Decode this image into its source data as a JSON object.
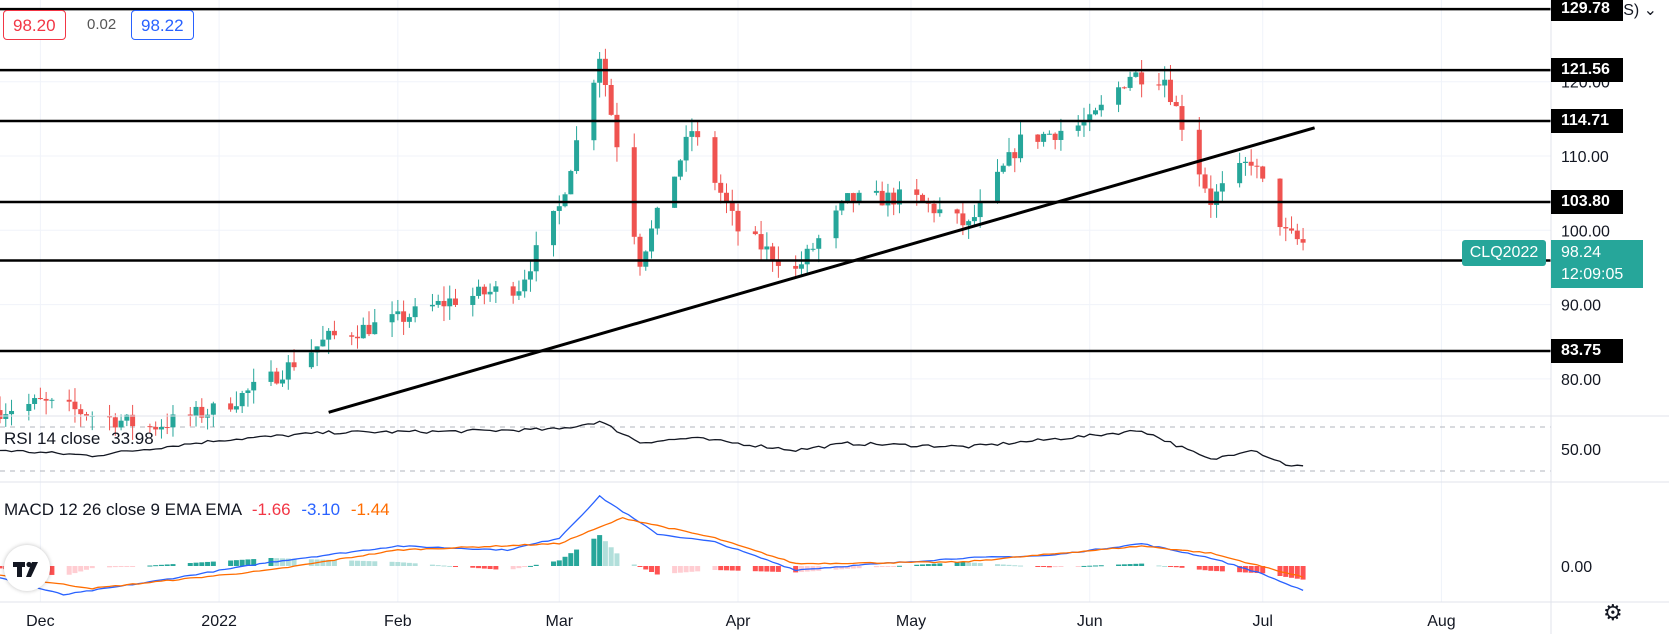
{
  "header": {
    "bid": "98.20",
    "spread": "0.02",
    "ask": "98.22",
    "unit": "barrel (US) ⌄"
  },
  "symbol": {
    "name": "CLQ2022",
    "last_price": "98.24",
    "countdown": "12:09:05"
  },
  "indicators": {
    "rsi": {
      "label": "RSI 14 close",
      "value": "33.98"
    },
    "macd": {
      "label": "MACD 12 26 close 9 EMA EMA",
      "hist_value": "-1.66",
      "macd_value": "-3.10",
      "signal_value": "-1.44"
    }
  },
  "colors": {
    "up": "#26a69a",
    "down": "#ef5350",
    "macd_line": "#2962ff",
    "signal_line": "#ff6d00",
    "hist_up": "#26a69a",
    "hist_up_weak": "#b2dfdb",
    "hist_down": "#ff5252",
    "hist_down_weak": "#ffcdd2",
    "level_line": "#000000"
  },
  "chart_data": {
    "type": "candlestick",
    "x_axis": {
      "labels": [
        "Dec",
        "2022",
        "Feb",
        "Mar",
        "Apr",
        "May",
        "Jun",
        "Jul",
        "Aug"
      ],
      "label_dates": [
        "2021-12-01",
        "2022-01-01",
        "2022-02-01",
        "2022-03-01",
        "2022-04-01",
        "2022-05-01",
        "2022-06-01",
        "2022-07-01",
        "2022-08-01"
      ],
      "range": [
        "2021-11-24",
        "2022-08-20"
      ]
    },
    "y_axis": {
      "range": [
        75,
        131
      ],
      "tick_labels": [
        "80.00",
        "90.00",
        "100.00",
        "110.00",
        "120.00"
      ],
      "tick_values": [
        80,
        90,
        100,
        110,
        120
      ]
    },
    "levels": [
      {
        "value": 129.78,
        "label": "129.78"
      },
      {
        "value": 121.56,
        "label": "121.56"
      },
      {
        "value": 114.71,
        "label": "114.71"
      },
      {
        "value": 103.8,
        "label": "103.80"
      },
      {
        "value": 95.93,
        "label": "95.93"
      },
      {
        "value": 83.75,
        "label": "83.75"
      }
    ],
    "trendline": {
      "start": [
        "2022-01-20",
        75.5
      ],
      "end": [
        "2022-07-10",
        113.8
      ]
    },
    "anchors": [
      [
        "2021-11-24",
        75.8
      ],
      [
        "2021-12-01",
        76.8
      ],
      [
        "2021-12-10",
        75.2
      ],
      [
        "2021-12-20",
        73.5
      ],
      [
        "2022-01-01",
        76.0
      ],
      [
        "2022-01-10",
        80.0
      ],
      [
        "2022-01-20",
        85.5
      ],
      [
        "2022-02-01",
        88.0
      ],
      [
        "2022-02-10",
        90.5
      ],
      [
        "2022-02-22",
        92.5
      ],
      [
        "2022-03-01",
        103.0
      ],
      [
        "2022-03-08",
        123.7
      ],
      [
        "2022-03-15",
        96.0
      ],
      [
        "2022-03-24",
        113.5
      ],
      [
        "2022-04-01",
        100.0
      ],
      [
        "2022-04-11",
        94.5
      ],
      [
        "2022-04-20",
        104.0
      ],
      [
        "2022-05-01",
        104.5
      ],
      [
        "2022-05-11",
        100.5
      ],
      [
        "2022-05-20",
        112.0
      ],
      [
        "2022-06-01",
        114.5
      ],
      [
        "2022-06-08",
        121.0
      ],
      [
        "2022-06-14",
        120.5
      ],
      [
        "2022-06-22",
        104.0
      ],
      [
        "2022-06-29",
        109.5
      ],
      [
        "2022-07-05",
        99.5
      ],
      [
        "2022-07-08",
        98.24
      ]
    ],
    "rsi": {
      "range": [
        20,
        80
      ],
      "band": [
        30,
        70
      ],
      "tick_labels": [
        "50.00"
      ],
      "tick_values": [
        50
      ],
      "anchors": [
        [
          "2021-11-24",
          49
        ],
        [
          "2021-12-10",
          44
        ],
        [
          "2022-01-01",
          58
        ],
        [
          "2022-01-20",
          65
        ],
        [
          "2022-02-10",
          66
        ],
        [
          "2022-03-01",
          68
        ],
        [
          "2022-03-08",
          75
        ],
        [
          "2022-03-15",
          56
        ],
        [
          "2022-03-24",
          60
        ],
        [
          "2022-04-11",
          49
        ],
        [
          "2022-04-20",
          55
        ],
        [
          "2022-05-11",
          52
        ],
        [
          "2022-06-01",
          62
        ],
        [
          "2022-06-10",
          67
        ],
        [
          "2022-06-22",
          40
        ],
        [
          "2022-06-29",
          50
        ],
        [
          "2022-07-05",
          36
        ],
        [
          "2022-07-08",
          34
        ]
      ]
    },
    "macd": {
      "range": [
        -4.5,
        10.5
      ],
      "tick_labels": [
        "0.00"
      ],
      "tick_values": [
        0
      ],
      "macd_anchors": [
        [
          "2021-11-24",
          -1.5
        ],
        [
          "2021-12-05",
          -3.6
        ],
        [
          "2021-12-20",
          -2.0
        ],
        [
          "2022-01-10",
          0.5
        ],
        [
          "2022-02-01",
          2.5
        ],
        [
          "2022-02-20",
          2.0
        ],
        [
          "2022-03-01",
          3.5
        ],
        [
          "2022-03-08",
          8.7
        ],
        [
          "2022-03-18",
          4.0
        ],
        [
          "2022-03-28",
          3.0
        ],
        [
          "2022-04-11",
          -0.5
        ],
        [
          "2022-04-20",
          0.0
        ],
        [
          "2022-05-10",
          1.0
        ],
        [
          "2022-05-25",
          1.3
        ],
        [
          "2022-06-10",
          2.8
        ],
        [
          "2022-06-22",
          1.0
        ],
        [
          "2022-07-01",
          -1.0
        ],
        [
          "2022-07-08",
          -3.1
        ]
      ],
      "signal_anchors": [
        [
          "2021-11-24",
          -1.2
        ],
        [
          "2021-12-10",
          -2.8
        ],
        [
          "2022-01-10",
          -0.5
        ],
        [
          "2022-02-01",
          2.0
        ],
        [
          "2022-03-01",
          2.8
        ],
        [
          "2022-03-12",
          6.0
        ],
        [
          "2022-03-28",
          3.5
        ],
        [
          "2022-04-11",
          0.3
        ],
        [
          "2022-05-10",
          0.5
        ],
        [
          "2022-06-10",
          2.5
        ],
        [
          "2022-06-22",
          1.6
        ],
        [
          "2022-07-08",
          -1.4
        ]
      ]
    }
  }
}
